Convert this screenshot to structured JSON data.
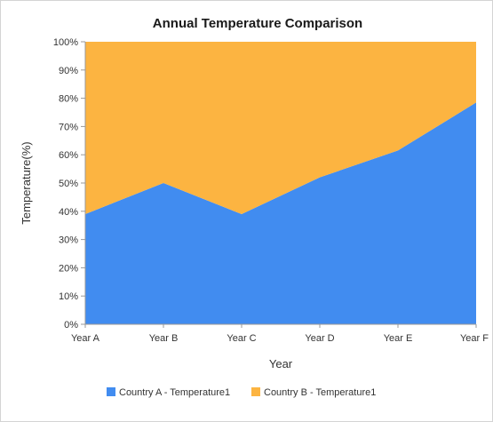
{
  "chart_data": {
    "type": "area",
    "stacked": "percent",
    "title": "Annual Temperature Comparison",
    "xlabel": "Year",
    "ylabel": "Temperature(%)",
    "categories": [
      "Year A",
      "Year B",
      "Year C",
      "Year D",
      "Year E",
      "Year F"
    ],
    "ylim": [
      0,
      100
    ],
    "yticks": [
      "0%",
      "10%",
      "20%",
      "30%",
      "40%",
      "50%",
      "60%",
      "70%",
      "80%",
      "90%",
      "100%"
    ],
    "grid": false,
    "legend_position": "bottom",
    "series": [
      {
        "name": "Country A - Temperature1",
        "color": "#418cf0",
        "values": [
          39,
          50,
          39,
          52,
          61.5,
          78.5
        ]
      },
      {
        "name": "Country B - Temperature1",
        "color": "#fcb441",
        "values": [
          61,
          50,
          61,
          48,
          38.5,
          21.5
        ]
      }
    ]
  }
}
